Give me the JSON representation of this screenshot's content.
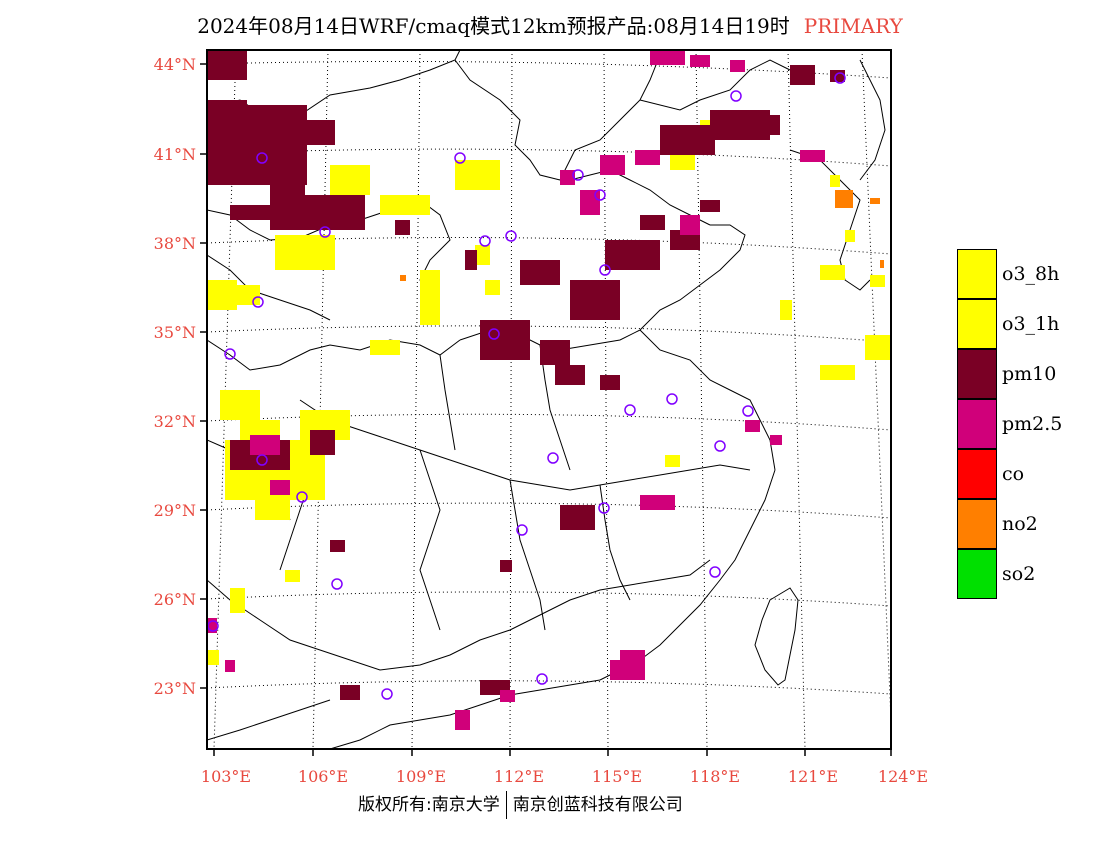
{
  "header": {
    "title": "2024年08月14日WRF/cmaq模式12km预报产品:08月14日19时",
    "tag": "PRIMARY",
    "tag_color": "#e8493f"
  },
  "map": {
    "lat_labels": [
      "44°N",
      "41°N",
      "38°N",
      "35°N",
      "32°N",
      "29°N",
      "26°N",
      "23°N"
    ],
    "lon_labels": [
      "103°E",
      "106°E",
      "109°E",
      "112°E",
      "115°E",
      "118°E",
      "121°E",
      "124°E"
    ],
    "label_color": "#e8493f",
    "pollutant_colors": {
      "o3": "#ffff00",
      "pm10": "#7a0025",
      "pm25": "#d0007a",
      "no2": "#ff7f00",
      "station": "#8000ff"
    }
  },
  "legend": [
    {
      "label": "o3_8h",
      "color": "#ffff00"
    },
    {
      "label": "o3_1h",
      "color": "#ffff00"
    },
    {
      "label": "pm10",
      "color": "#7a0025"
    },
    {
      "label": "pm2.5",
      "color": "#d0007a"
    },
    {
      "label": "co",
      "color": "#ff0000"
    },
    {
      "label": "no2",
      "color": "#ff7f00"
    },
    {
      "label": "so2",
      "color": "#00e000"
    }
  ],
  "footer": {
    "left": "版权所有:南京大学",
    "right": "南京创蓝科技有限公司"
  }
}
